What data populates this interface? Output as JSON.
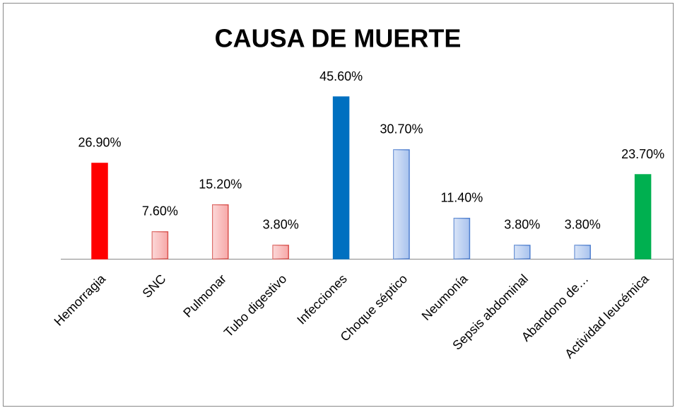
{
  "chart_data": {
    "type": "bar",
    "title": "CAUSA DE MUERTE",
    "categories": [
      "Hemorragia",
      "SNC",
      "Pulmonar",
      "Tubo digestivo",
      "Infecciones",
      "Choque séptico",
      "Neumonía",
      "Sepsis abdominal",
      "Abandono de…",
      "Actividad leucémica"
    ],
    "values": [
      26.9,
      7.6,
      15.2,
      3.8,
      45.6,
      30.7,
      11.4,
      3.8,
      3.8,
      23.7
    ],
    "value_labels": [
      "26.90%",
      "7.60%",
      "15.20%",
      "3.80%",
      "45.60%",
      "30.70%",
      "11.40%",
      "3.80%",
      "3.80%",
      "23.70%"
    ],
    "colors": [
      "#ff0000",
      "#f7a8a8",
      "#f7a8a8",
      "#f7a8a8",
      "#0070c0",
      "#a9c3ee",
      "#a9c3ee",
      "#a9c3ee",
      "#a9c3ee",
      "#00b050"
    ]
  }
}
